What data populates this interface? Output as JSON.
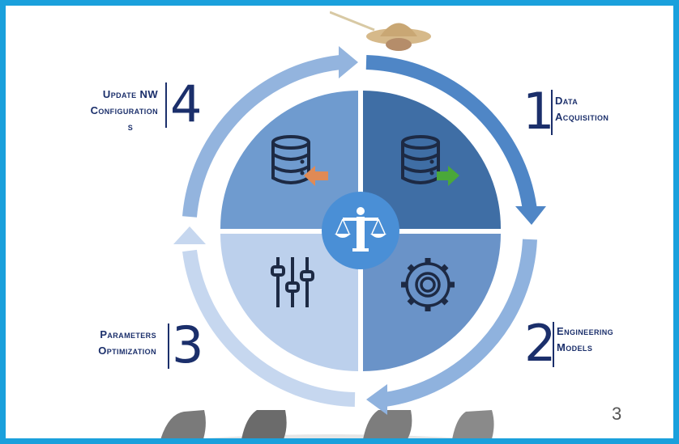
{
  "steps": [
    {
      "number": "1",
      "label_line1": "Data",
      "label_line2": "Acquisition"
    },
    {
      "number": "2",
      "label_line1": "Engineering",
      "label_line2": "Models"
    },
    {
      "number": "3",
      "label_line1": "Parameters",
      "label_line2": "Optimization"
    },
    {
      "number": "4",
      "label_line1": "Update  NW",
      "label_line2": "Configuration",
      "label_line3": "s"
    }
  ],
  "page_number": "3",
  "colors": {
    "frame": "#1aa0dc",
    "text": "#1b2f6b",
    "quadrant_top_left": "#6f9bcf",
    "quadrant_top_right": "#3f6ea5",
    "quadrant_bottom_left": "#bcd0ec",
    "quadrant_bottom_right": "#6a93c8",
    "center_badge": "#4a8fd6"
  },
  "icons": {
    "quadrant_top_left": "database-import-icon",
    "quadrant_top_right": "database-export-icon",
    "quadrant_bottom_left": "sliders-icon",
    "quadrant_bottom_right": "gear-icon",
    "center": "justice-scale-icon"
  }
}
